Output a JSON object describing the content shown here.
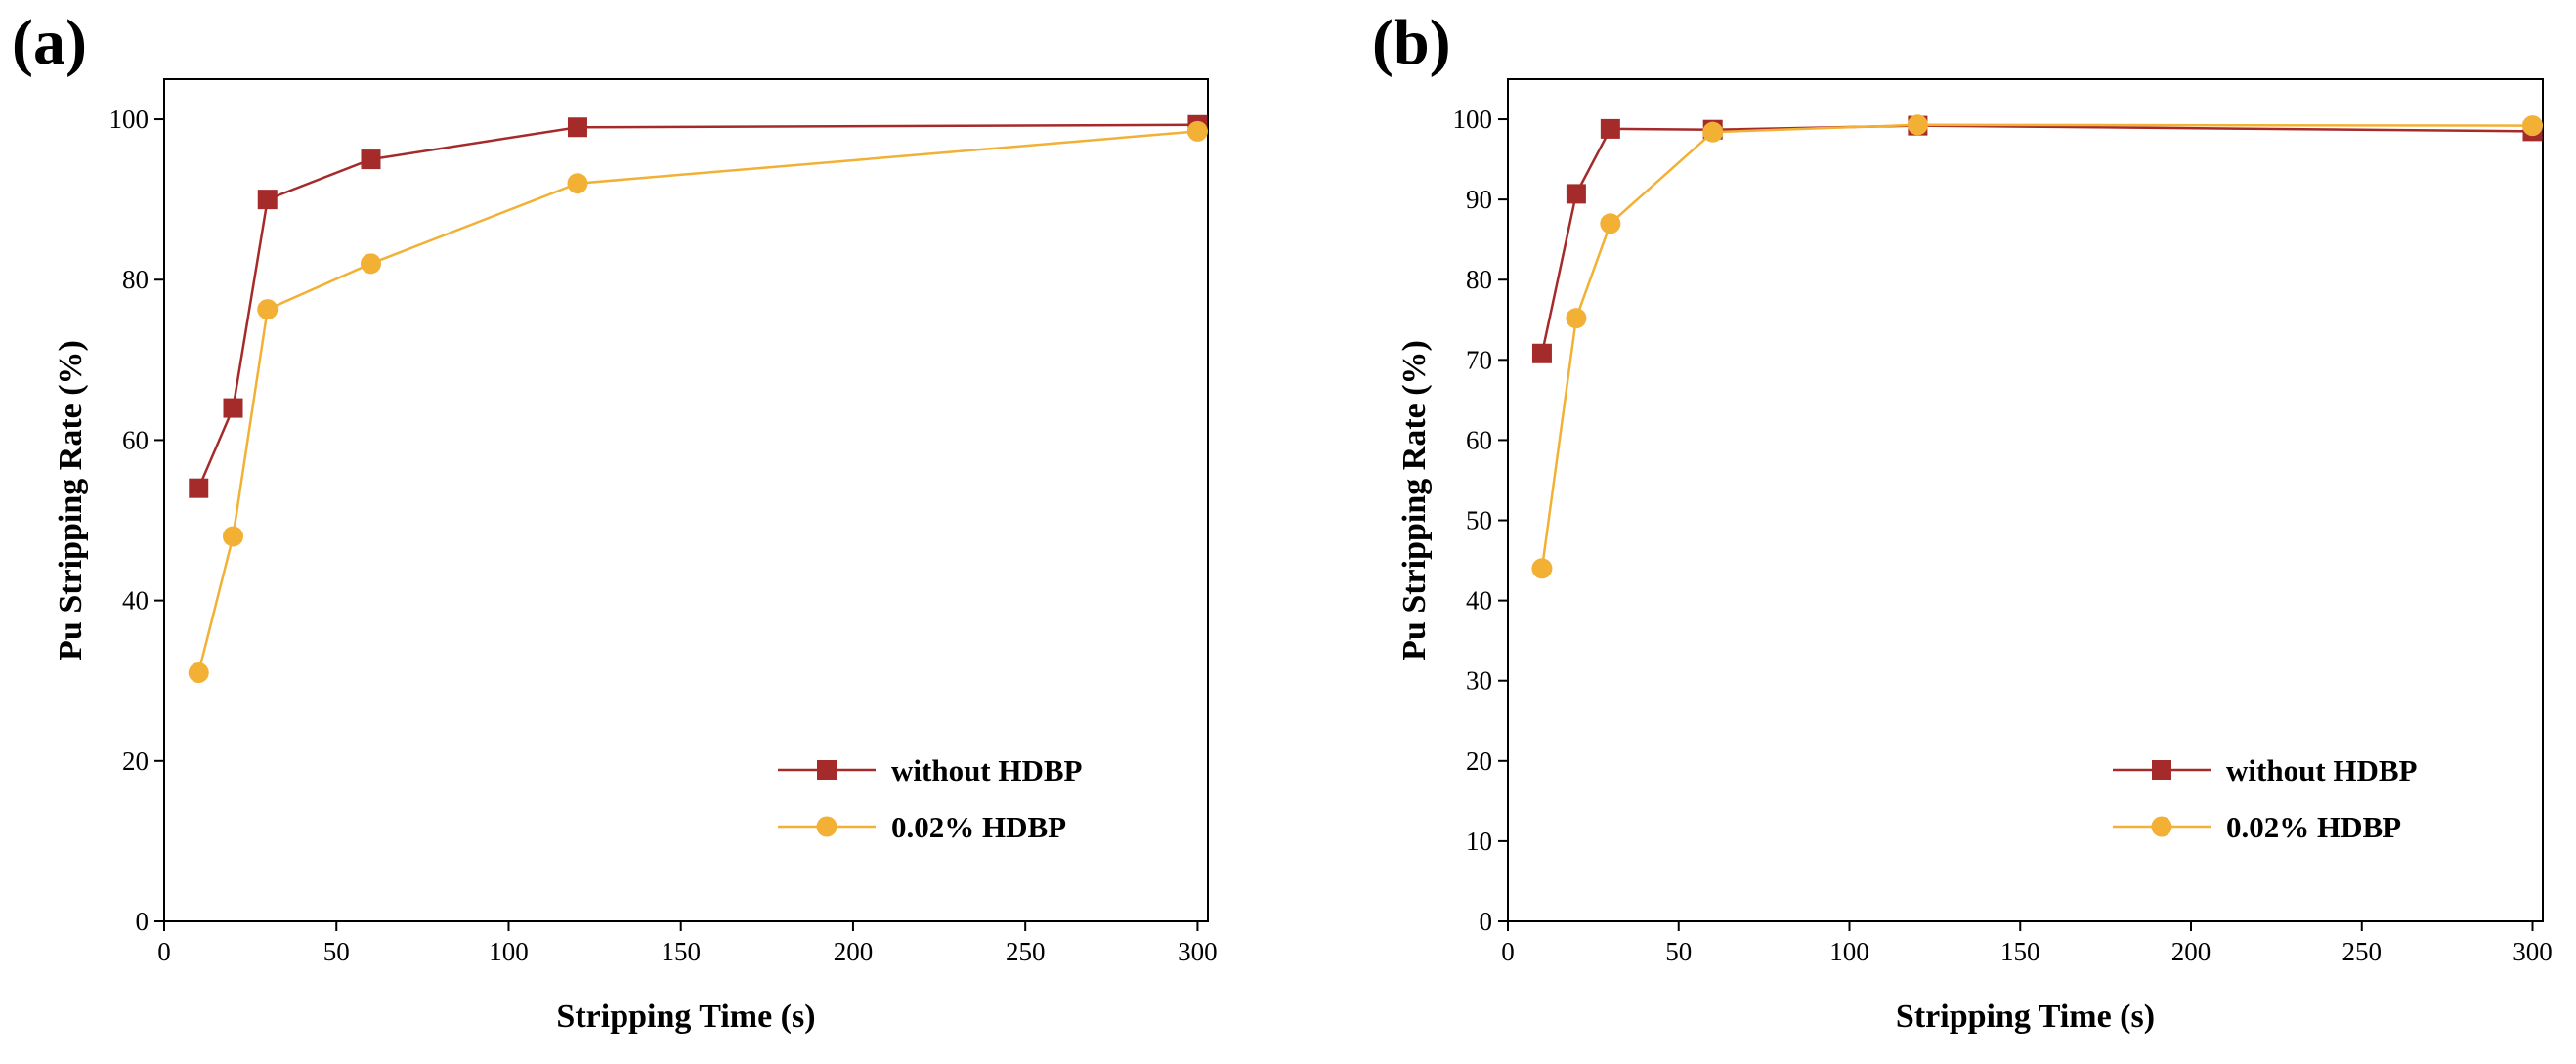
{
  "chart_data": [
    {
      "type": "line",
      "panel_label": "(a)",
      "x_label": "Stripping Time (s)",
      "y_label": "Pu Stripping Rate (%)",
      "x": [
        10,
        20,
        30,
        60,
        120,
        300
      ],
      "series": [
        {
          "name": "without HDBP",
          "color": "#a52a2a",
          "marker": "square",
          "values": [
            54,
            64,
            90,
            95,
            99,
            99.3
          ]
        },
        {
          "name": "0.02% HDBP",
          "color": "#f2b035",
          "marker": "circle",
          "values": [
            31,
            48,
            76.3,
            82,
            92,
            98.5
          ]
        }
      ],
      "xlim": [
        0,
        303
      ],
      "xticks": [
        0,
        50,
        100,
        150,
        200,
        250,
        300
      ],
      "ylim": [
        0,
        105
      ],
      "yticks": [
        0,
        20,
        40,
        60,
        80,
        100
      ],
      "legend": "lower right"
    },
    {
      "type": "line",
      "panel_label": "(b)",
      "x_label": "Stripping Time (s)",
      "y_label": "Pu Stripping Rate (%)",
      "x": [
        10,
        20,
        30,
        60,
        120,
        300
      ],
      "series": [
        {
          "name": "without HDBP",
          "color": "#a52a2a",
          "marker": "square",
          "values": [
            70.8,
            90.7,
            98.8,
            98.7,
            99.2,
            98.5
          ]
        },
        {
          "name": "0.02% HDBP",
          "color": "#f2b035",
          "marker": "circle",
          "values": [
            44,
            75.2,
            87,
            98.4,
            99.3,
            99.2
          ]
        }
      ],
      "xlim": [
        0,
        303
      ],
      "xticks": [
        0,
        50,
        100,
        150,
        200,
        250,
        300
      ],
      "ylim": [
        0,
        105
      ],
      "yticks": [
        0,
        10,
        20,
        30,
        40,
        50,
        60,
        70,
        80,
        90,
        100
      ],
      "legend": "lower right"
    }
  ]
}
